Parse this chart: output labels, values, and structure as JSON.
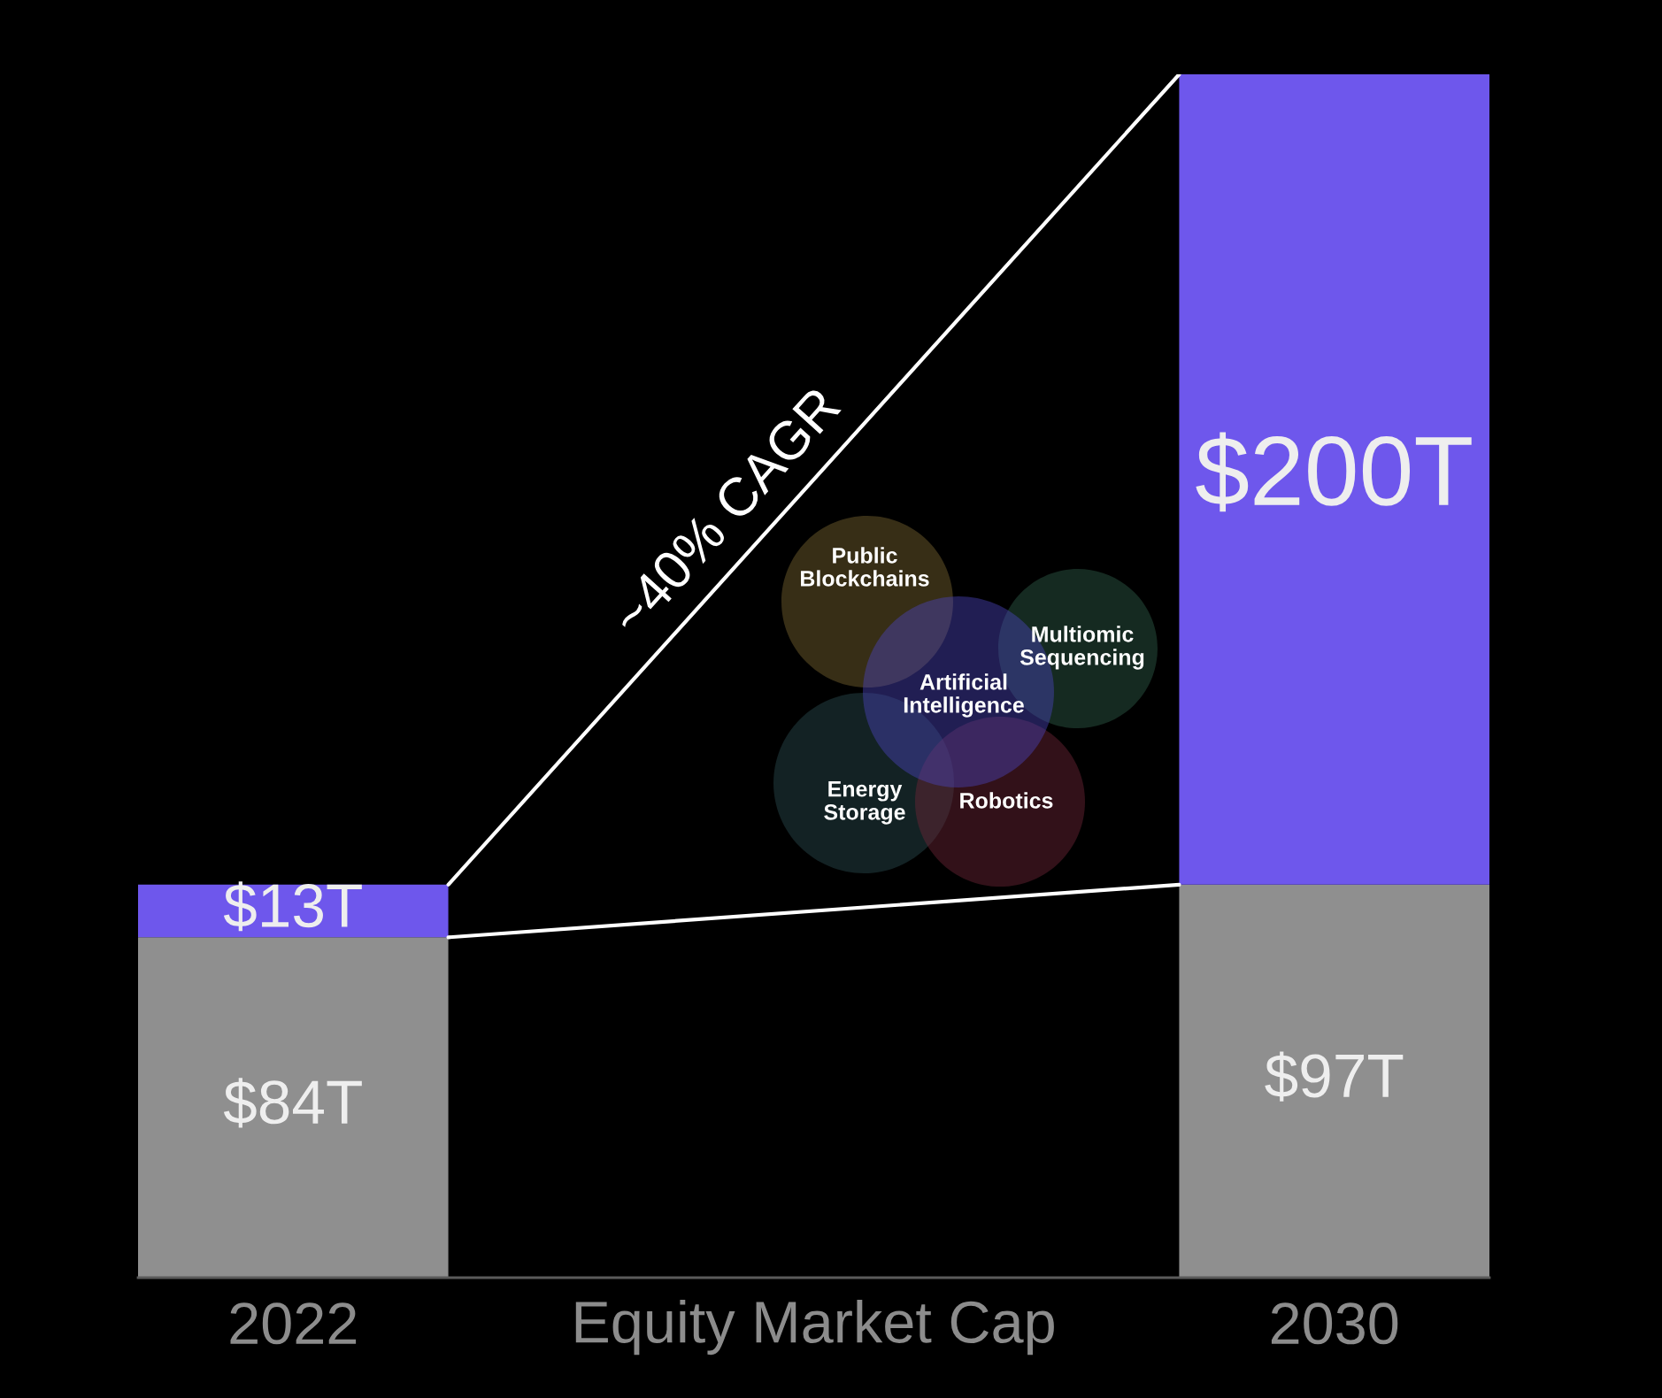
{
  "chart_data": {
    "type": "bar",
    "stacked": true,
    "categories": [
      "2022",
      "2030"
    ],
    "xlabel": "Equity Market Cap",
    "series": [
      {
        "color": "#8f8f8f",
        "values": [
          84,
          97
        ],
        "value_labels": [
          "$84T",
          "$97T"
        ]
      },
      {
        "color": "#6e57ec",
        "values": [
          13,
          200
        ],
        "value_labels": [
          "$13T",
          "$200T"
        ]
      }
    ],
    "ylim": [
      0,
      297
    ],
    "tick_labels": "x",
    "grid": false,
    "legend": false,
    "annotations": [
      "~40% CAGR",
      "Public\nBlockchains",
      "Multiomic\nSequencing",
      "Artificial\nIntelligence",
      "Energy\nStorage",
      "Robotics"
    ]
  }
}
